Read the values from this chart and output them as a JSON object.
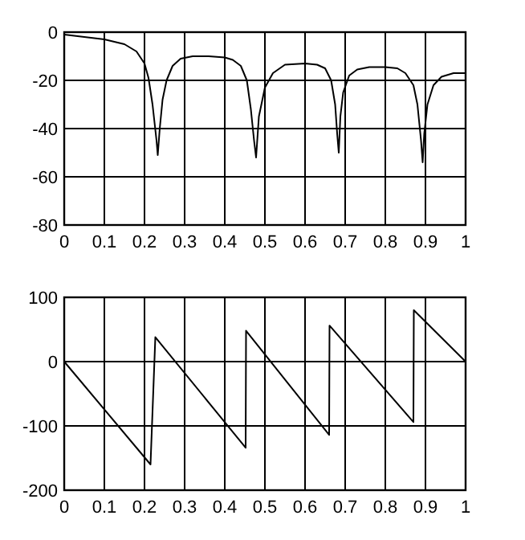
{
  "chart_data": [
    {
      "type": "line",
      "x": [
        0,
        0.05,
        0.1,
        0.15,
        0.18,
        0.2,
        0.21,
        0.22,
        0.23,
        0.233,
        0.238,
        0.245,
        0.255,
        0.27,
        0.29,
        0.32,
        0.36,
        0.4,
        0.42,
        0.44,
        0.455,
        0.465,
        0.473,
        0.478,
        0.485,
        0.5,
        0.52,
        0.55,
        0.6,
        0.63,
        0.65,
        0.665,
        0.675,
        0.68,
        0.684,
        0.688,
        0.695,
        0.71,
        0.73,
        0.76,
        0.8,
        0.83,
        0.85,
        0.87,
        0.88,
        0.889,
        0.893,
        0.897,
        0.905,
        0.92,
        0.94,
        0.97,
        1
      ],
      "series": [
        {
          "color": "#000000",
          "values": [
            -1,
            -2,
            -3,
            -5,
            -8,
            -13,
            -19,
            -30,
            -45,
            -51,
            -40,
            -28,
            -20,
            -14,
            -11,
            -10,
            -10,
            -10.5,
            -11.5,
            -14,
            -20,
            -32,
            -45,
            -52,
            -35,
            -23,
            -17,
            -13.5,
            -13,
            -13.5,
            -15,
            -20,
            -30,
            -42,
            -50,
            -35,
            -25,
            -18,
            -15.5,
            -14.5,
            -14.5,
            -15,
            -17,
            -22,
            -30,
            -45,
            -54,
            -42,
            -30,
            -22,
            -18.5,
            -17,
            -17
          ]
        }
      ],
      "xlim": [
        0,
        1
      ],
      "xticks": [
        0,
        0.1,
        0.2,
        0.3,
        0.4,
        0.5,
        0.6,
        0.7,
        0.8,
        0.9,
        1
      ],
      "ylim": [
        -80,
        0
      ],
      "yticks": [
        -80,
        -60,
        -40,
        -20,
        0
      ],
      "grid": true
    },
    {
      "type": "line",
      "x": [
        0,
        0.215,
        0.227,
        0.452,
        0.453,
        0.66,
        0.661,
        0.87,
        0.871,
        1
      ],
      "series": [
        {
          "color": "#000000",
          "values": [
            0,
            -160,
            38,
            -134,
            48,
            -114,
            56,
            -94,
            80,
            0
          ]
        }
      ],
      "xlim": [
        0,
        1
      ],
      "xticks": [
        0,
        0.1,
        0.2,
        0.3,
        0.4,
        0.5,
        0.6,
        0.7,
        0.8,
        0.9,
        1
      ],
      "ylim": [
        -200,
        100
      ],
      "yticks": [
        -200,
        -100,
        0,
        100
      ],
      "grid": true
    }
  ]
}
